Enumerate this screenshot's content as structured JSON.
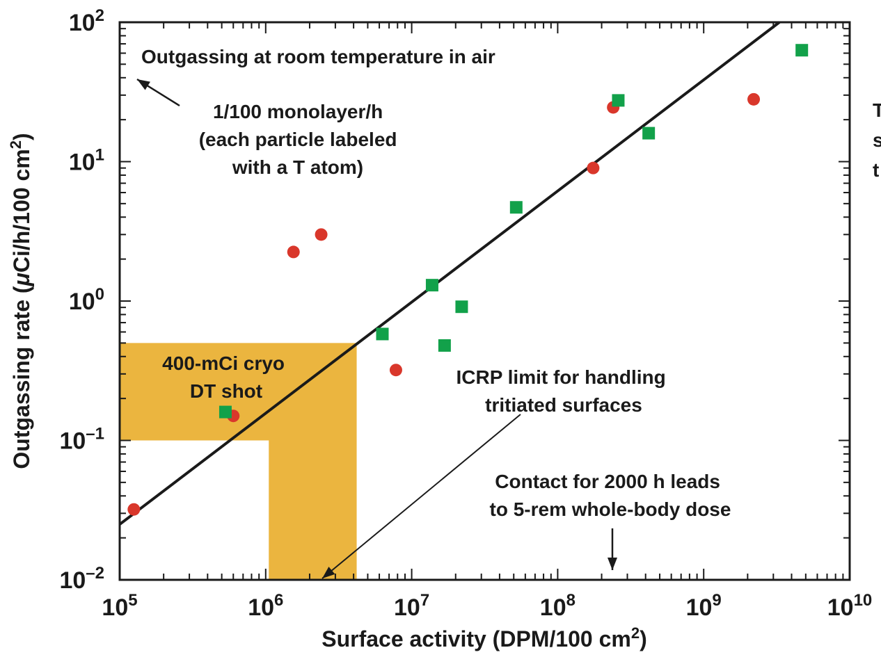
{
  "chart_data": {
    "type": "scatter",
    "xscale": "log",
    "yscale": "log",
    "xlim": [
      100000,
      10000000000
    ],
    "ylim": [
      0.01,
      100
    ],
    "xlabel": {
      "main": "Surface activity (DPM/100 cm",
      "sup": "2",
      "end": ")"
    },
    "ylabel": {
      "main": "Outgassing rate (",
      "mu": "μ",
      "mid": "Ci/h/100 cm",
      "sup": "2",
      "end": ")"
    },
    "xticks": [
      {
        "value": 100000,
        "base": "10",
        "exp": "5"
      },
      {
        "value": 1000000,
        "base": "10",
        "exp": "6"
      },
      {
        "value": 10000000,
        "base": "10",
        "exp": "7"
      },
      {
        "value": 100000000,
        "base": "10",
        "exp": "8"
      },
      {
        "value": 1000000000,
        "base": "10",
        "exp": "9"
      },
      {
        "value": 10000000000,
        "base": "10",
        "exp": "10"
      }
    ],
    "yticks": [
      {
        "value": 0.01,
        "base": "10",
        "exp": "–2"
      },
      {
        "value": 0.1,
        "base": "10",
        "exp": "–1"
      },
      {
        "value": 1,
        "base": "10",
        "exp": "0"
      },
      {
        "value": 10,
        "base": "10",
        "exp": "1"
      },
      {
        "value": 100,
        "base": "10",
        "exp": "2"
      }
    ],
    "grid": false,
    "series": [
      {
        "marker": "circle",
        "color": "#d9372b",
        "points": [
          [
            125000,
            0.032
          ],
          [
            600000,
            0.15
          ],
          [
            1550000,
            2.25
          ],
          [
            2400000,
            3.0
          ],
          [
            7800000,
            0.32
          ],
          [
            175000000,
            9.0
          ],
          [
            240000000,
            24.5
          ],
          [
            2200000000,
            28.0
          ]
        ]
      },
      {
        "marker": "square",
        "color": "#12a14a",
        "points": [
          [
            530000,
            0.16
          ],
          [
            6300000,
            0.58
          ],
          [
            13800000,
            1.3
          ],
          [
            16800000,
            0.48
          ],
          [
            22000000,
            0.91
          ],
          [
            52000000,
            4.7
          ],
          [
            260000000,
            27.5
          ],
          [
            420000000,
            16.0
          ],
          [
            4700000000,
            63.0
          ]
        ]
      }
    ],
    "fit_line": {
      "x": [
        100000,
        3300000000
      ],
      "y": [
        0.025,
        100
      ],
      "color": "#1a1a1a"
    },
    "shaded_region": {
      "color": "#ebb53f",
      "polygon": [
        [
          100000,
          0.1
        ],
        [
          100000,
          0.5
        ],
        [
          4200000,
          0.5
        ],
        [
          4200000,
          0.01
        ],
        [
          1050000,
          0.01
        ],
        [
          1050000,
          0.1
        ]
      ]
    },
    "annotations": {
      "title_text": "Outgassing at room temperature in air",
      "monolayer": [
        "1/100 monolayer/h",
        "(each particle labeled",
        "with a T atom)"
      ],
      "cryo": [
        "400-mCi cryo",
        "DT shot"
      ],
      "icrp": [
        "ICRP limit for handling",
        "tritiated surfaces"
      ],
      "contact": [
        "Contact for 2000 h leads",
        "to 5-rem whole-body dose"
      ],
      "clipped_right": [
        "T",
        "s",
        "t"
      ]
    }
  }
}
